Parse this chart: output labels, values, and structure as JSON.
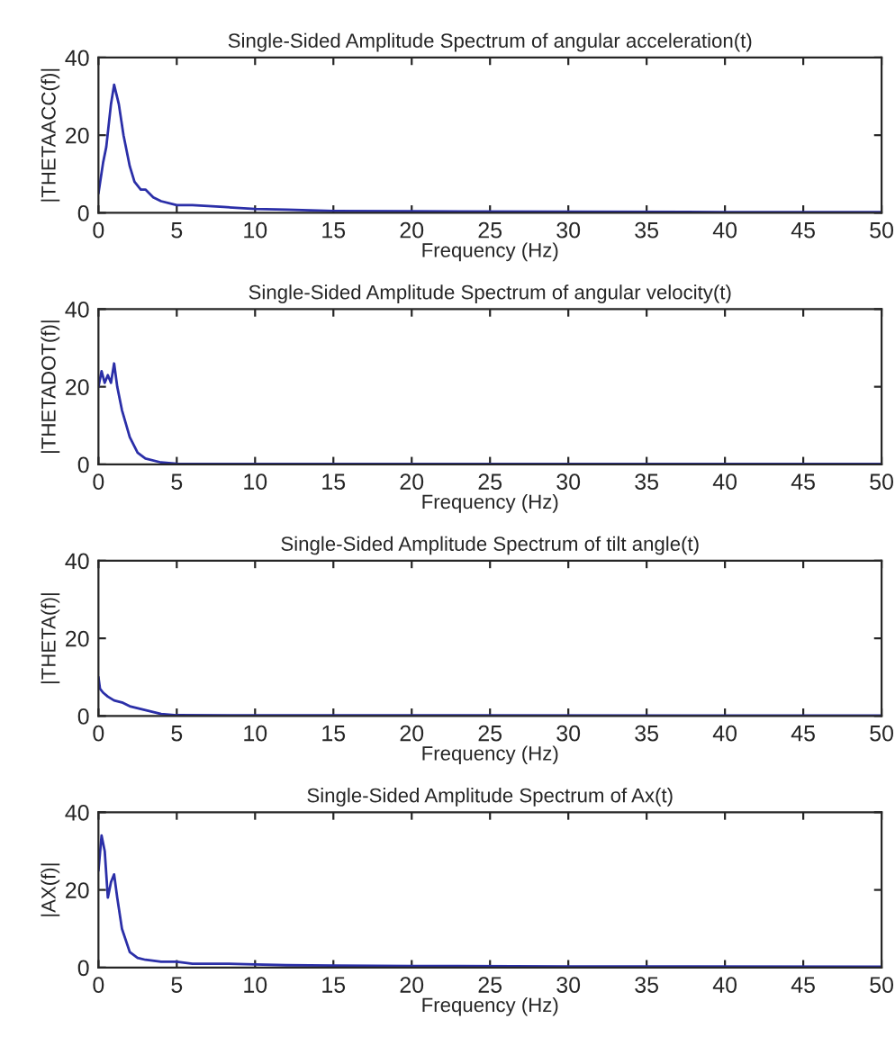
{
  "chart_data": [
    {
      "type": "line",
      "title": "Single-Sided Amplitude Spectrum of angular acceleration(t)",
      "xlabel": "Frequency (Hz)",
      "ylabel": "|THETAACC(f)|",
      "xlim": [
        0,
        50
      ],
      "ylim": [
        0,
        40
      ],
      "xticks": [
        0,
        5,
        10,
        15,
        20,
        25,
        30,
        35,
        40,
        45,
        50
      ],
      "yticks": [
        0,
        20,
        40
      ],
      "grid": false,
      "legend": false,
      "series": [
        {
          "color": "#2b2fa8",
          "x": [
            0,
            0.3,
            0.5,
            0.8,
            1,
            1.3,
            1.6,
            2,
            2.3,
            2.7,
            3,
            3.5,
            4,
            5,
            6,
            8,
            10,
            12,
            15,
            20,
            30,
            40,
            50
          ],
          "values": [
            5,
            13,
            17,
            28,
            33,
            28,
            20,
            12,
            8,
            6,
            6,
            4,
            3,
            2,
            2,
            1.5,
            1,
            0.8,
            0.5,
            0.4,
            0.3,
            0.2,
            0.2
          ]
        }
      ]
    },
    {
      "type": "line",
      "title": "Single-Sided Amplitude Spectrum of angular velocity(t)",
      "xlabel": "Frequency (Hz)",
      "ylabel": "|THETADOT(f)|",
      "xlim": [
        0,
        50
      ],
      "ylim": [
        0,
        40
      ],
      "xticks": [
        0,
        5,
        10,
        15,
        20,
        25,
        30,
        35,
        40,
        45,
        50
      ],
      "yticks": [
        0,
        20,
        40
      ],
      "grid": false,
      "legend": false,
      "series": [
        {
          "color": "#2b2fa8",
          "x": [
            0,
            0.2,
            0.4,
            0.6,
            0.8,
            1,
            1.2,
            1.5,
            2,
            2.5,
            3,
            4,
            5,
            10,
            50
          ],
          "values": [
            20,
            24,
            21,
            23,
            21,
            26,
            20,
            14,
            7,
            3,
            1.5,
            0.5,
            0.2,
            0.1,
            0.1
          ]
        }
      ]
    },
    {
      "type": "line",
      "title": "Single-Sided Amplitude Spectrum of tilt angle(t)",
      "xlabel": "Frequency (Hz)",
      "ylabel": "|THETA(f)|",
      "xlim": [
        0,
        50
      ],
      "ylim": [
        0,
        40
      ],
      "xticks": [
        0,
        5,
        10,
        15,
        20,
        25,
        30,
        35,
        40,
        45,
        50
      ],
      "yticks": [
        0,
        20,
        40
      ],
      "grid": false,
      "legend": false,
      "series": [
        {
          "color": "#2b2fa8",
          "x": [
            0,
            0.1,
            0.3,
            0.6,
            1,
            1.5,
            2,
            3,
            4,
            5,
            50
          ],
          "values": [
            10,
            7,
            6,
            5,
            4,
            3.5,
            2.5,
            1.5,
            0.5,
            0.2,
            0.1
          ]
        }
      ]
    },
    {
      "type": "line",
      "title": "Single-Sided Amplitude Spectrum of Ax(t)",
      "xlabel": "Frequency (Hz)",
      "ylabel": "|AX(f)|",
      "xlim": [
        0,
        50
      ],
      "ylim": [
        0,
        40
      ],
      "xticks": [
        0,
        5,
        10,
        15,
        20,
        25,
        30,
        35,
        40,
        45,
        50
      ],
      "yticks": [
        0,
        20,
        40
      ],
      "grid": false,
      "legend": false,
      "series": [
        {
          "color": "#2b2fa8",
          "x": [
            0,
            0.2,
            0.4,
            0.6,
            0.8,
            1,
            1.2,
            1.5,
            2,
            2.5,
            3,
            4,
            5,
            6,
            8,
            10,
            12,
            15,
            20,
            30,
            50
          ],
          "values": [
            25,
            34,
            30,
            18,
            22,
            24,
            18,
            10,
            4,
            2.5,
            2,
            1.5,
            1.5,
            1,
            1,
            0.8,
            0.6,
            0.5,
            0.4,
            0.3,
            0.2
          ]
        }
      ]
    }
  ]
}
